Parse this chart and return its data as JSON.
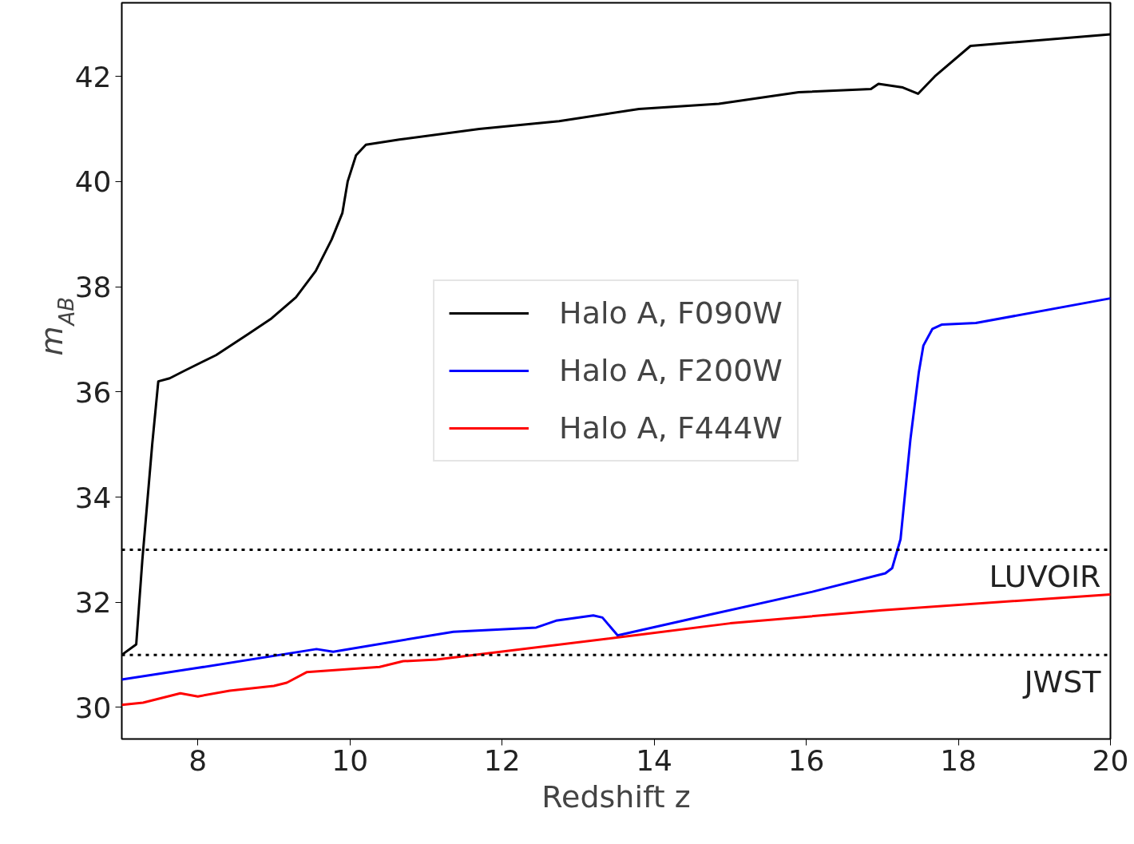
{
  "chart_data": {
    "type": "line",
    "xlabel": "Redshift z",
    "ylabel": "m$_{AB}$",
    "xlim": [
      7,
      20
    ],
    "ylim": [
      29.4,
      43.4
    ],
    "xticks": [
      8,
      10,
      12,
      14,
      16,
      18,
      20
    ],
    "yticks": [
      30,
      32,
      34,
      36,
      38,
      40,
      42
    ],
    "grid": false,
    "legend": "center",
    "line_style": "solid",
    "marker": "none",
    "series": [
      {
        "name": "Halo A, F090W",
        "color": "#000000",
        "x": [
          7.0,
          7.19,
          7.27,
          7.4,
          7.48,
          7.63,
          7.82,
          8.24,
          8.66,
          8.97,
          9.29,
          9.55,
          9.76,
          9.9,
          9.97,
          10.08,
          10.21,
          10.65,
          11.7,
          12.75,
          13.8,
          14.85,
          15.9,
          16.85,
          16.95,
          17.27,
          17.47,
          17.69,
          18.16,
          18.32,
          20.0
        ],
        "values": [
          31.0,
          31.2,
          32.8,
          35.0,
          36.2,
          36.26,
          36.4,
          36.7,
          37.1,
          37.4,
          37.8,
          38.3,
          38.9,
          39.4,
          40.0,
          40.5,
          40.7,
          40.8,
          41.0,
          41.15,
          41.38,
          41.48,
          41.7,
          41.76,
          41.86,
          41.79,
          41.67,
          42.0,
          42.58,
          42.6,
          42.8
        ]
      },
      {
        "name": "Halo A, F200W",
        "color": "#0000ff",
        "x": [
          7.0,
          7.99,
          9.56,
          9.78,
          11.36,
          12.45,
          12.71,
          13.2,
          13.32,
          13.52,
          14.72,
          16.08,
          17.04,
          17.13,
          17.24,
          17.37,
          17.48,
          17.54,
          17.66,
          17.78,
          18.23,
          20.0
        ],
        "values": [
          30.53,
          30.75,
          31.11,
          31.06,
          31.44,
          31.52,
          31.65,
          31.75,
          31.71,
          31.37,
          31.76,
          32.2,
          32.55,
          32.65,
          33.2,
          35.1,
          36.37,
          36.88,
          37.2,
          37.28,
          37.31,
          37.78
        ]
      },
      {
        "name": "Halo A, F444W",
        "color": "#ff0000",
        "x": [
          7.0,
          7.28,
          7.77,
          8.0,
          8.42,
          9.0,
          9.17,
          9.43,
          10.39,
          10.7,
          11.14,
          13.8,
          15.0,
          17.0,
          20.0
        ],
        "values": [
          30.05,
          30.09,
          30.27,
          30.21,
          30.32,
          30.41,
          30.47,
          30.67,
          30.77,
          30.88,
          30.91,
          31.38,
          31.6,
          31.85,
          32.15
        ]
      }
    ],
    "ref_lines": [
      {
        "axis": "y",
        "value": 33,
        "label": "LUVOIR",
        "color": "#000000",
        "line_style": "dotted"
      },
      {
        "axis": "y",
        "value": 31,
        "label": "JWST",
        "color": "#000000",
        "line_style": "dotted"
      }
    ]
  }
}
